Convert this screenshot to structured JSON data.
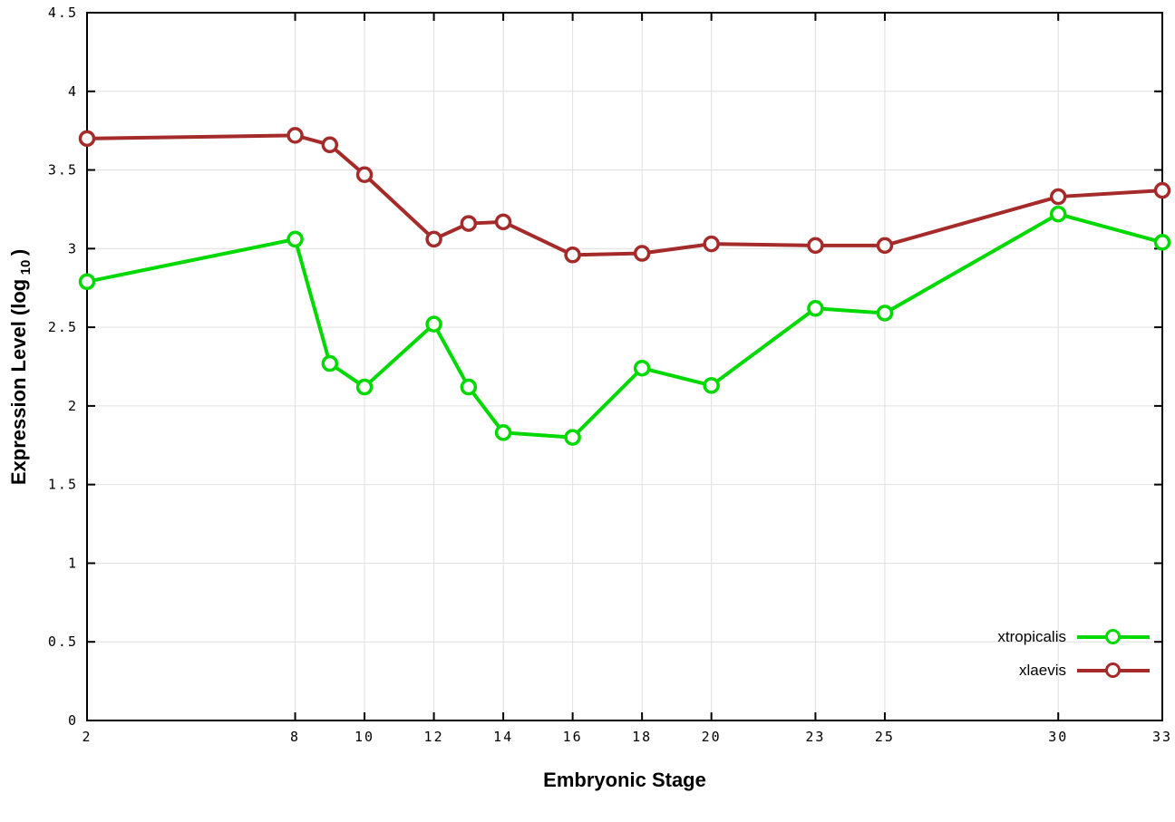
{
  "chart_data": {
    "type": "line",
    "title": "",
    "xlabel": "Embryonic Stage",
    "ylabel": {
      "pre": "Expression Level (log",
      "sub": "10",
      "post": ")"
    },
    "xlim": [
      2,
      33
    ],
    "ylim": [
      0,
      4.5
    ],
    "x_ticks": [
      2,
      8,
      10,
      12,
      14,
      16,
      18,
      20,
      23,
      25,
      30,
      33
    ],
    "y_ticks": [
      0,
      0.5,
      1,
      1.5,
      2,
      2.5,
      3,
      3.5,
      4,
      4.5
    ],
    "grid": true,
    "legend_position": "bottom-right",
    "x": [
      2,
      8,
      9,
      10,
      12,
      13,
      14,
      16,
      18,
      20,
      23,
      25,
      30,
      33
    ],
    "series": [
      {
        "name": "xtropicalis",
        "color": "#00d900",
        "values": [
          2.79,
          3.06,
          2.27,
          2.12,
          2.52,
          2.12,
          1.83,
          1.8,
          2.24,
          2.13,
          2.62,
          2.59,
          3.22,
          3.04
        ]
      },
      {
        "name": "xlaevis",
        "color": "#a52a2a",
        "values": [
          3.7,
          3.72,
          3.66,
          3.47,
          3.06,
          3.16,
          3.17,
          2.96,
          2.97,
          3.03,
          3.02,
          3.02,
          3.33,
          3.37
        ]
      }
    ],
    "colors": {
      "grid": "#e0e0e0",
      "border": "#000000",
      "background": "#ffffff"
    }
  }
}
